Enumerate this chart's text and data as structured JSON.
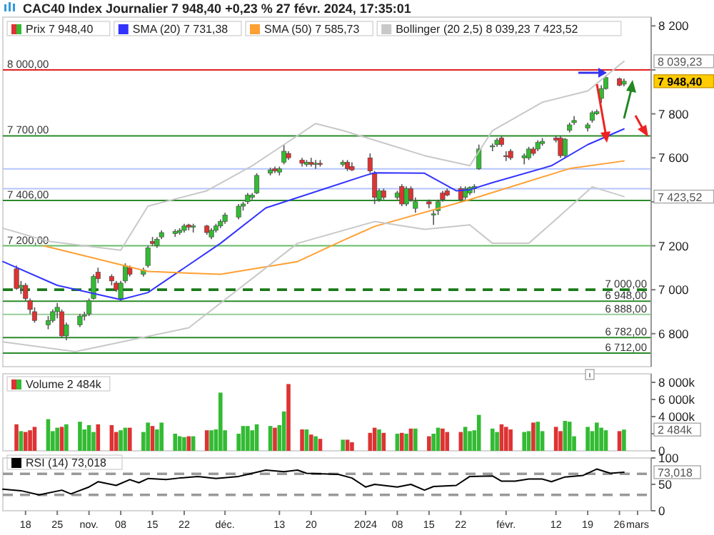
{
  "chart_data": [
    {
      "type": "candlestick",
      "title": "CAC40 Index Journalier 7 948,40 +0,23 % 27 févr. 2024, 17:35:01",
      "legend": "top left",
      "tick_labels": "y",
      "xlim": [
        "2023-10-13",
        "2024-03-04"
      ],
      "ylim": [
        6650,
        8240
      ],
      "yticks": [
        {
          "value": 6800,
          "label": "6 800"
        },
        {
          "value": 7000,
          "label": "7 000"
        },
        {
          "value": 7200,
          "label": "7 200"
        },
        {
          "value": 7400,
          "label": null
        },
        {
          "value": 7600,
          "label": "7 600"
        },
        {
          "value": 7800,
          "label": "7 800"
        },
        {
          "value": 8000,
          "label": null
        },
        {
          "value": 8200,
          "label": "8 200"
        }
      ],
      "ref_lines": [
        {
          "axis": "y",
          "value": 8000,
          "label": "8 000,00",
          "color": "#e02020"
        },
        {
          "axis": "y",
          "value": 7700,
          "label": "7 700,00",
          "color": "#2a8a2a"
        },
        {
          "axis": "y",
          "value": 7550,
          "color": "#b4c4ff"
        },
        {
          "axis": "y",
          "value": 7460,
          "color": "#b4c4ff"
        },
        {
          "axis": "y",
          "value": 7406,
          "label": "7 406,00",
          "color": "#2a8a2a"
        },
        {
          "axis": "y",
          "value": 7200,
          "label": "7 200,00",
          "color": "#66bb66"
        },
        {
          "axis": "y",
          "value": 7000,
          "label": "7 000,00",
          "color": "#1a7a1a",
          "line_style": "dashed"
        },
        {
          "axis": "y",
          "value": 6948,
          "label": "6 948,00",
          "color": "#2a8a2a"
        },
        {
          "axis": "y",
          "value": 6888,
          "label": "6 888,00",
          "color": "#99cc99"
        },
        {
          "axis": "y",
          "value": 6782,
          "label": "6 782,00",
          "color": "#2a8a2a"
        },
        {
          "axis": "y",
          "value": 6712,
          "label": "6 712,00",
          "color": "#2a8a2a"
        }
      ],
      "annotations": [
        {
          "text": "8 039,23",
          "x": "2024-02-27",
          "y": 8039.23
        },
        {
          "text": "7 948,40",
          "x": "2024-02-27",
          "y": 7948.4
        },
        {
          "text": "7 423,52",
          "x": "2024-02-27",
          "y": 7423.52
        }
      ],
      "series": [
        {
          "name": "Prix 7 948,40",
          "x": [
            "2023-10-16",
            "2023-10-17",
            "2023-10-18",
            "2023-10-19",
            "2023-10-20",
            "2023-10-23",
            "2023-10-24",
            "2023-10-25",
            "2023-10-26",
            "2023-10-27",
            "2023-10-30",
            "2023-10-31",
            "2023-11-01",
            "2023-11-02",
            "2023-11-03",
            "2023-11-06",
            "2023-11-07",
            "2023-11-08",
            "2023-11-09",
            "2023-11-10",
            "2023-11-13",
            "2023-11-14",
            "2023-11-15",
            "2023-11-16",
            "2023-11-17",
            "2023-11-20",
            "2023-11-21",
            "2023-11-22",
            "2023-11-23",
            "2023-11-24",
            "2023-11-27",
            "2023-11-28",
            "2023-11-29",
            "2023-11-30",
            "2023-12-01",
            "2023-12-04",
            "2023-12-05",
            "2023-12-06",
            "2023-12-07",
            "2023-12-08",
            "2023-12-11",
            "2023-12-12",
            "2023-12-13",
            "2023-12-14",
            "2023-12-15",
            "2023-12-18",
            "2023-12-19",
            "2023-12-20",
            "2023-12-21",
            "2023-12-22",
            "2023-12-27",
            "2023-12-28",
            "2023-12-29",
            "2024-01-02",
            "2024-01-03",
            "2024-01-04",
            "2024-01-05",
            "2024-01-08",
            "2024-01-09",
            "2024-01-10",
            "2024-01-11",
            "2024-01-12",
            "2024-01-15",
            "2024-01-16",
            "2024-01-17",
            "2024-01-18",
            "2024-01-19",
            "2024-01-22",
            "2024-01-23",
            "2024-01-24",
            "2024-01-25",
            "2024-01-26",
            "2024-01-29",
            "2024-01-30",
            "2024-01-31",
            "2024-02-01",
            "2024-02-02",
            "2024-02-05",
            "2024-02-06",
            "2024-02-07",
            "2024-02-08",
            "2024-02-09",
            "2024-02-12",
            "2024-02-13",
            "2024-02-14",
            "2024-02-15",
            "2024-02-16",
            "2024-02-19",
            "2024-02-20",
            "2024-02-21",
            "2024-02-22",
            "2024-02-23",
            "2024-02-26",
            "2024-02-27"
          ],
          "ohlc": [
            [
              7095,
              7110,
              7000,
              7006
            ],
            [
              7010,
              7040,
              6980,
              7020
            ],
            [
              7020,
              7030,
              6950,
              6960
            ],
            [
              6950,
              6960,
              6890,
              6910
            ],
            [
              6900,
              6920,
              6850,
              6860
            ],
            [
              6840,
              6880,
              6820,
              6860
            ],
            [
              6860,
              6910,
              6850,
              6900
            ],
            [
              6900,
              6940,
              6870,
              6920
            ],
            [
              6900,
              6910,
              6780,
              6790
            ],
            [
              6790,
              6850,
              6770,
              6840
            ],
            [
              6840,
              6890,
              6830,
              6880
            ],
            [
              6880,
              6900,
              6860,
              6885
            ],
            [
              6890,
              6960,
              6880,
              6950
            ],
            [
              6960,
              7070,
              6955,
              7060
            ],
            [
              7080,
              7100,
              7030,
              7050
            ],
            [
              7060,
              7070,
              7020,
              7040
            ],
            [
              7030,
              7040,
              6990,
              7000
            ],
            [
              6960,
              7040,
              6950,
              7030
            ],
            [
              7040,
              7120,
              7030,
              7110
            ],
            [
              7100,
              7110,
              7060,
              7070
            ],
            [
              7070,
              7100,
              7060,
              7090
            ],
            [
              7110,
              7200,
              7100,
              7190
            ],
            [
              7220,
              7240,
              7200,
              7210
            ],
            [
              7200,
              7240,
              7190,
              7230
            ],
            [
              7240,
              7270,
              7230,
              7260
            ],
            [
              7255,
              7275,
              7240,
              7265
            ],
            [
              7260,
              7280,
              7250,
              7270
            ],
            [
              7270,
              7300,
              7260,
              7290
            ],
            [
              7295,
              7300,
              7270,
              7285
            ],
            [
              7285,
              7300,
              7260,
              7290
            ],
            [
              7290,
              7295,
              7250,
              7260
            ],
            [
              7240,
              7280,
              7230,
              7270
            ],
            [
              7270,
              7300,
              7260,
              7290
            ],
            [
              7290,
              7320,
              7280,
              7310
            ],
            [
              7310,
              7350,
              7300,
              7340
            ],
            [
              7330,
              7390,
              7320,
              7380
            ],
            [
              7380,
              7400,
              7360,
              7390
            ],
            [
              7400,
              7440,
              7390,
              7430
            ],
            [
              7420,
              7440,
              7410,
              7430
            ],
            [
              7440,
              7530,
              7435,
              7520
            ],
            [
              7530,
              7555,
              7520,
              7545
            ],
            [
              7550,
              7560,
              7530,
              7540
            ],
            [
              7535,
              7560,
              7520,
              7550
            ],
            [
              7580,
              7660,
              7570,
              7630
            ],
            [
              7620,
              7630,
              7590,
              7600
            ],
            [
              7590,
              7600,
              7560,
              7575
            ],
            [
              7570,
              7590,
              7560,
              7580
            ],
            [
              7580,
              7600,
              7560,
              7570
            ],
            [
              7570,
              7590,
              7550,
              7575
            ],
            [
              7575,
              7590,
              7560,
              7570
            ],
            [
              7570,
              7590,
              7560,
              7580
            ],
            [
              7580,
              7590,
              7540,
              7550
            ],
            [
              7560,
              7580,
              7540,
              7545
            ],
            [
              7600,
              7620,
              7530,
              7540
            ],
            [
              7530,
              7540,
              7390,
              7420
            ],
            [
              7410,
              7460,
              7400,
              7450
            ],
            [
              7450,
              7460,
              7410,
              7420
            ],
            [
              7420,
              7450,
              7410,
              7440
            ],
            [
              7470,
              7480,
              7380,
              7390
            ],
            [
              7390,
              7470,
              7380,
              7460
            ],
            [
              7460,
              7470,
              7400,
              7410
            ],
            [
              7370,
              7420,
              7350,
              7400
            ],
            [
              7400,
              7410,
              7370,
              7390
            ],
            [
              7340,
              7360,
              7295,
              7345
            ],
            [
              7360,
              7410,
              7340,
              7400
            ],
            [
              7440,
              7450,
              7400,
              7410
            ],
            [
              7450,
              7460,
              7425,
              7430
            ],
            [
              7460,
              7470,
              7400,
              7410
            ],
            [
              7420,
              7470,
              7410,
              7460
            ],
            [
              7440,
              7470,
              7430,
              7465
            ],
            [
              7460,
              7480,
              7440,
              7470
            ],
            [
              7550,
              7660,
              7545,
              7640
            ],
            [
              7650,
              7665,
              7630,
              7655
            ],
            [
              7660,
              7690,
              7650,
              7680
            ],
            [
              7690,
              7700,
              7650,
              7660
            ],
            [
              7610,
              7630,
              7585,
              7605
            ],
            [
              7630,
              7640,
              7590,
              7600
            ],
            [
              7600,
              7620,
              7570,
              7610
            ],
            [
              7600,
              7650,
              7590,
              7640
            ],
            [
              7640,
              7650,
              7610,
              7620
            ],
            [
              7640,
              7680,
              7630,
              7670
            ],
            [
              7665,
              7690,
              7655,
              7675
            ],
            [
              7690,
              7700,
              7670,
              7680
            ],
            [
              7690,
              7700,
              7600,
              7610
            ],
            [
              7610,
              7690,
              7600,
              7685
            ],
            [
              7725,
              7760,
              7715,
              7750
            ],
            [
              7760,
              7790,
              7750,
              7770
            ],
            [
              7735,
              7760,
              7720,
              7750
            ],
            [
              7770,
              7815,
              7760,
              7805
            ],
            [
              7800,
              7820,
              7795,
              7810
            ],
            [
              7870,
              7930,
              7850,
              7915
            ],
            [
              7915,
              7975,
              7910,
              7965
            ],
            [
              7960,
              7965,
              7925,
              7930
            ],
            [
              7935,
              7960,
              7925,
              7948.4
            ]
          ],
          "colors": [
            "#dd3333",
            "#33bb33",
            "#dd3333",
            "#dd3333",
            "#dd3333",
            "#33bb33",
            "#33bb33",
            "#33bb33",
            "#dd3333",
            "#33bb33",
            "#33bb33",
            "#33bb33",
            "#33bb33",
            "#33bb33",
            "#dd3333",
            "#dd3333",
            "#dd3333",
            "#33bb33",
            "#33bb33",
            "#dd3333",
            "#33bb33",
            "#33bb33",
            "#dd3333",
            "#33bb33",
            "#33bb33",
            "#33bb33",
            "#33bb33",
            "#33bb33",
            "#dd3333",
            "#33bb33",
            "#dd3333",
            "#33bb33",
            "#33bb33",
            "#33bb33",
            "#33bb33",
            "#33bb33",
            "#33bb33",
            "#33bb33",
            "#33bb33",
            "#33bb33",
            "#33bb33",
            "#dd3333",
            "#33bb33",
            "#33bb33",
            "#dd3333",
            "#dd3333",
            "#33bb33",
            "#dd3333",
            "#33bb33",
            "#dd3333",
            "#33bb33",
            "#dd3333",
            "#dd3333",
            "#dd3333",
            "#dd3333",
            "#33bb33",
            "#dd3333",
            "#33bb33",
            "#dd3333",
            "#33bb33",
            "#dd3333",
            "#33bb33",
            "#dd3333",
            "#33bb33",
            "#33bb33",
            "#dd3333",
            "#dd3333",
            "#dd3333",
            "#33bb33",
            "#33bb33",
            "#33bb33",
            "#33bb33",
            "#33bb33",
            "#33bb33",
            "#dd3333",
            "#dd3333",
            "#dd3333",
            "#33bb33",
            "#33bb33",
            "#dd3333",
            "#33bb33",
            "#33bb33",
            "#dd3333",
            "#dd3333",
            "#33bb33",
            "#33bb33",
            "#33bb33",
            "#33bb33",
            "#33bb33",
            "#33bb33",
            "#33bb33",
            "#33bb33",
            "#dd3333",
            "#33bb33"
          ]
        },
        {
          "type": "line",
          "name": "SMA (20) 7 731,38",
          "color": "#3333ff",
          "x": [
            "2023-10-13",
            "2023-10-25",
            "2023-11-08",
            "2023-11-14",
            "2023-11-30",
            "2023-12-10",
            "2024-01-01",
            "2024-01-03",
            "2024-01-14",
            "2024-01-21",
            "2024-01-24",
            "2024-01-29",
            "2024-02-11",
            "2024-02-19",
            "2024-02-27"
          ],
          "values": [
            7128,
            7020,
            6955,
            6987,
            7211,
            7372,
            7520,
            7532,
            7530,
            7450,
            7455,
            7487,
            7564,
            7660,
            7731.38
          ]
        },
        {
          "type": "line",
          "name": "SMA (50) 7 585,73",
          "color": "#ffa033",
          "x": [
            "2023-10-22",
            "2023-11-14",
            "2023-11-30",
            "2023-12-17",
            "2023-12-27",
            "2024-01-03",
            "2024-01-24",
            "2024-02-15",
            "2024-02-27"
          ],
          "values": [
            7200,
            7083,
            7070,
            7128,
            7224,
            7288,
            7410,
            7551,
            7585.73
          ]
        },
        {
          "type": "line",
          "name": "Bollinger (20 2,5) 8 039,23 7 423,52",
          "color": "#c8c8c8",
          "x": [
            "2023-10-13",
            "2023-10-23",
            "2023-11-08",
            "2023-11-14",
            "2023-11-27",
            "2023-12-07",
            "2023-12-14",
            "2023-12-21",
            "2023-12-27",
            "2024-01-03",
            "2024-01-14",
            "2024-01-24",
            "2024-01-29",
            "2024-02-09",
            "2024-02-19",
            "2024-02-27"
          ],
          "values": [
            7280,
            7220,
            7180,
            7380,
            7450,
            7564,
            7660,
            7756,
            7724,
            7680,
            7610,
            7564,
            7724,
            7853,
            7904,
            8039.23
          ]
        },
        {
          "type": "line",
          "color": "#c8c8c8",
          "x": [
            "2023-10-13",
            "2023-10-29",
            "2023-11-23",
            "2023-12-17",
            "2024-01-03",
            "2024-01-14",
            "2024-01-24",
            "2024-01-29",
            "2024-02-06",
            "2024-02-12",
            "2024-02-20",
            "2024-02-27"
          ],
          "values": [
            6763,
            6718,
            6827,
            7211,
            7310,
            7275,
            7295,
            7211,
            7211,
            7320,
            7468,
            7423.52
          ]
        }
      ]
    },
    {
      "type": "bar",
      "legend": "top left",
      "tick_labels": "y",
      "xlim": [
        "2023-10-13",
        "2024-03-04"
      ],
      "ylim": [
        0,
        9000
      ],
      "yticks": [
        0,
        {
          "value": 2000,
          "label": null
        },
        {
          "value": 4000,
          "label": "4 000k"
        },
        {
          "value": 6000,
          "label": "6 000k"
        },
        {
          "value": 8000,
          "label": "8 000k"
        }
      ],
      "annotations": [
        {
          "text": "2 484k",
          "x": "2024-02-27",
          "y": 2484
        }
      ],
      "series": [
        {
          "name": "Volume 2 484k",
          "x": [
            "2023-10-16",
            "2023-10-17",
            "2023-10-18",
            "2023-10-19",
            "2023-10-20",
            "2023-10-23",
            "2023-10-24",
            "2023-10-25",
            "2023-10-26",
            "2023-10-27",
            "2023-10-30",
            "2023-10-31",
            "2023-11-01",
            "2023-11-02",
            "2023-11-03",
            "2023-11-06",
            "2023-11-07",
            "2023-11-08",
            "2023-11-09",
            "2023-11-10",
            "2023-11-13",
            "2023-11-14",
            "2023-11-15",
            "2023-11-16",
            "2023-11-17",
            "2023-11-20",
            "2023-11-21",
            "2023-11-22",
            "2023-11-23",
            "2023-11-24",
            "2023-11-27",
            "2023-11-28",
            "2023-11-29",
            "2023-11-30",
            "2023-12-01",
            "2023-12-04",
            "2023-12-05",
            "2023-12-06",
            "2023-12-07",
            "2023-12-08",
            "2023-12-11",
            "2023-12-12",
            "2023-12-13",
            "2023-12-14",
            "2023-12-15",
            "2023-12-18",
            "2023-12-19",
            "2023-12-20",
            "2023-12-21",
            "2023-12-22",
            "2023-12-27",
            "2023-12-28",
            "2023-12-29",
            "2024-01-02",
            "2024-01-03",
            "2024-01-04",
            "2024-01-05",
            "2024-01-08",
            "2024-01-09",
            "2024-01-10",
            "2024-01-11",
            "2024-01-12",
            "2024-01-15",
            "2024-01-16",
            "2024-01-17",
            "2024-01-18",
            "2024-01-19",
            "2024-01-22",
            "2024-01-23",
            "2024-01-24",
            "2024-01-25",
            "2024-01-26",
            "2024-01-29",
            "2024-01-30",
            "2024-01-31",
            "2024-02-01",
            "2024-02-02",
            "2024-02-05",
            "2024-02-06",
            "2024-02-07",
            "2024-02-08",
            "2024-02-09",
            "2024-02-12",
            "2024-02-13",
            "2024-02-14",
            "2024-02-15",
            "2024-02-16",
            "2024-02-19",
            "2024-02-20",
            "2024-02-21",
            "2024-02-22",
            "2024-02-23",
            "2024-02-26",
            "2024-02-27"
          ],
          "values": [
            3100,
            2300,
            2200,
            2400,
            2800,
            3700,
            2300,
            2700,
            2800,
            3100,
            3400,
            2500,
            3000,
            2200,
            3100,
            3000,
            2200,
            2400,
            2700,
            2700,
            2200,
            3300,
            2900,
            2500,
            3300,
            2000,
            1700,
            1600,
            1700,
            1700,
            2400,
            2400,
            2500,
            6800,
            2400,
            2000,
            2900,
            2900,
            2400,
            3100,
            2900,
            2700,
            3000,
            4600,
            7800,
            2500,
            2500,
            1900,
            1700,
            1400,
            1300,
            1300,
            1000,
            2100,
            2700,
            2500,
            2100,
            2000,
            2100,
            2000,
            2600,
            2600,
            1700,
            2000,
            2700,
            2600,
            2200,
            2200,
            2800,
            2300,
            2400,
            4200,
            2600,
            2200,
            3100,
            2800,
            2500,
            2200,
            2300,
            3300,
            3400,
            2300,
            2800,
            2300,
            3500,
            3400,
            1700,
            2800,
            2300,
            3300,
            2700,
            2400,
            2300,
            2484
          ],
          "colors": [
            "#dd3333",
            "#33bb33",
            "#dd3333",
            "#dd3333",
            "#dd3333",
            "#33bb33",
            "#33bb33",
            "#33bb33",
            "#dd3333",
            "#33bb33",
            "#33bb33",
            "#33bb33",
            "#33bb33",
            "#33bb33",
            "#dd3333",
            "#dd3333",
            "#dd3333",
            "#33bb33",
            "#33bb33",
            "#dd3333",
            "#33bb33",
            "#33bb33",
            "#dd3333",
            "#33bb33",
            "#33bb33",
            "#33bb33",
            "#33bb33",
            "#33bb33",
            "#dd3333",
            "#33bb33",
            "#dd3333",
            "#33bb33",
            "#33bb33",
            "#33bb33",
            "#33bb33",
            "#33bb33",
            "#33bb33",
            "#33bb33",
            "#33bb33",
            "#33bb33",
            "#33bb33",
            "#dd3333",
            "#33bb33",
            "#33bb33",
            "#dd3333",
            "#dd3333",
            "#33bb33",
            "#dd3333",
            "#33bb33",
            "#dd3333",
            "#33bb33",
            "#dd3333",
            "#dd3333",
            "#dd3333",
            "#dd3333",
            "#33bb33",
            "#dd3333",
            "#33bb33",
            "#dd3333",
            "#33bb33",
            "#dd3333",
            "#33bb33",
            "#dd3333",
            "#33bb33",
            "#33bb33",
            "#dd3333",
            "#dd3333",
            "#dd3333",
            "#33bb33",
            "#33bb33",
            "#33bb33",
            "#33bb33",
            "#33bb33",
            "#33bb33",
            "#dd3333",
            "#dd3333",
            "#dd3333",
            "#33bb33",
            "#33bb33",
            "#dd3333",
            "#33bb33",
            "#33bb33",
            "#dd3333",
            "#dd3333",
            "#33bb33",
            "#33bb33",
            "#33bb33",
            "#33bb33",
            "#33bb33",
            "#33bb33",
            "#33bb33",
            "#33bb33",
            "#dd3333",
            "#33bb33"
          ]
        }
      ]
    },
    {
      "type": "line",
      "legend": "top left",
      "xlim": [
        "2023-10-13",
        "2024-03-04"
      ],
      "xticks": [
        {
          "value": "2023-10-18",
          "label": "18"
        },
        {
          "value": "2023-10-25",
          "label": "25"
        },
        {
          "value": "2023-11-01",
          "label": "nov."
        },
        {
          "value": "2023-11-08",
          "label": "08"
        },
        {
          "value": "2023-11-15",
          "label": "15"
        },
        {
          "value": "2023-11-22",
          "label": "22"
        },
        {
          "value": "2023-12-01",
          "label": "déc."
        },
        {
          "value": "2023-12-13",
          "label": "13"
        },
        {
          "value": "2023-12-20",
          "label": "20"
        },
        {
          "value": "2024-01-01",
          "label": "2024"
        },
        {
          "value": "2024-01-08",
          "label": "08"
        },
        {
          "value": "2024-01-15",
          "label": "15"
        },
        {
          "value": "2024-01-22",
          "label": "22"
        },
        {
          "value": "2024-02-01",
          "label": "févr."
        },
        {
          "value": "2024-02-12",
          "label": "12"
        },
        {
          "value": "2024-02-19",
          "label": "19"
        },
        {
          "value": "2024-02-26",
          "label": "26"
        },
        {
          "value": "2024-03-01",
          "label": "mars"
        }
      ],
      "ylim": [
        0,
        100
      ],
      "yticks": [
        0,
        50,
        100
      ],
      "ref_lines": [
        {
          "axis": "y",
          "value": 70,
          "color": "#999999",
          "line_style": "dashed"
        },
        {
          "axis": "y",
          "value": 30,
          "color": "#999999",
          "line_style": "dashed"
        }
      ],
      "annotations": [
        {
          "text": "73,018",
          "x": "2024-02-27",
          "y": 73.018
        }
      ],
      "series": [
        {
          "name": "RSI (14) 73,018",
          "color": "#000000",
          "x": [
            "2023-10-13",
            "2023-10-17",
            "2023-10-21",
            "2023-10-26",
            "2023-10-28",
            "2023-11-01",
            "2023-11-03",
            "2023-11-07",
            "2023-11-10",
            "2023-11-12",
            "2023-11-14",
            "2023-11-18",
            "2023-11-21",
            "2023-11-25",
            "2023-11-29",
            "2023-12-04",
            "2023-12-06",
            "2023-12-10",
            "2023-12-14",
            "2023-12-17",
            "2023-12-19",
            "2023-12-26",
            "2023-12-29",
            "2024-01-01",
            "2024-01-03",
            "2024-01-08",
            "2024-01-11",
            "2024-01-14",
            "2024-01-16",
            "2024-01-21",
            "2024-01-24",
            "2024-01-29",
            "2024-01-31",
            "2024-02-03",
            "2024-02-06",
            "2024-02-09",
            "2024-02-11",
            "2024-02-14",
            "2024-02-18",
            "2024-02-21",
            "2024-02-24",
            "2024-02-27"
          ],
          "values": [
            41,
            38,
            30,
            39,
            32,
            45,
            55,
            48,
            59,
            53,
            61,
            59,
            62,
            65,
            61,
            65,
            69,
            77,
            74,
            77,
            71,
            69,
            62,
            45,
            50,
            45,
            50,
            39,
            46,
            48,
            65,
            66,
            56,
            56,
            60,
            60,
            55,
            64,
            67,
            79,
            71,
            73.018
          ]
        }
      ]
    }
  ]
}
